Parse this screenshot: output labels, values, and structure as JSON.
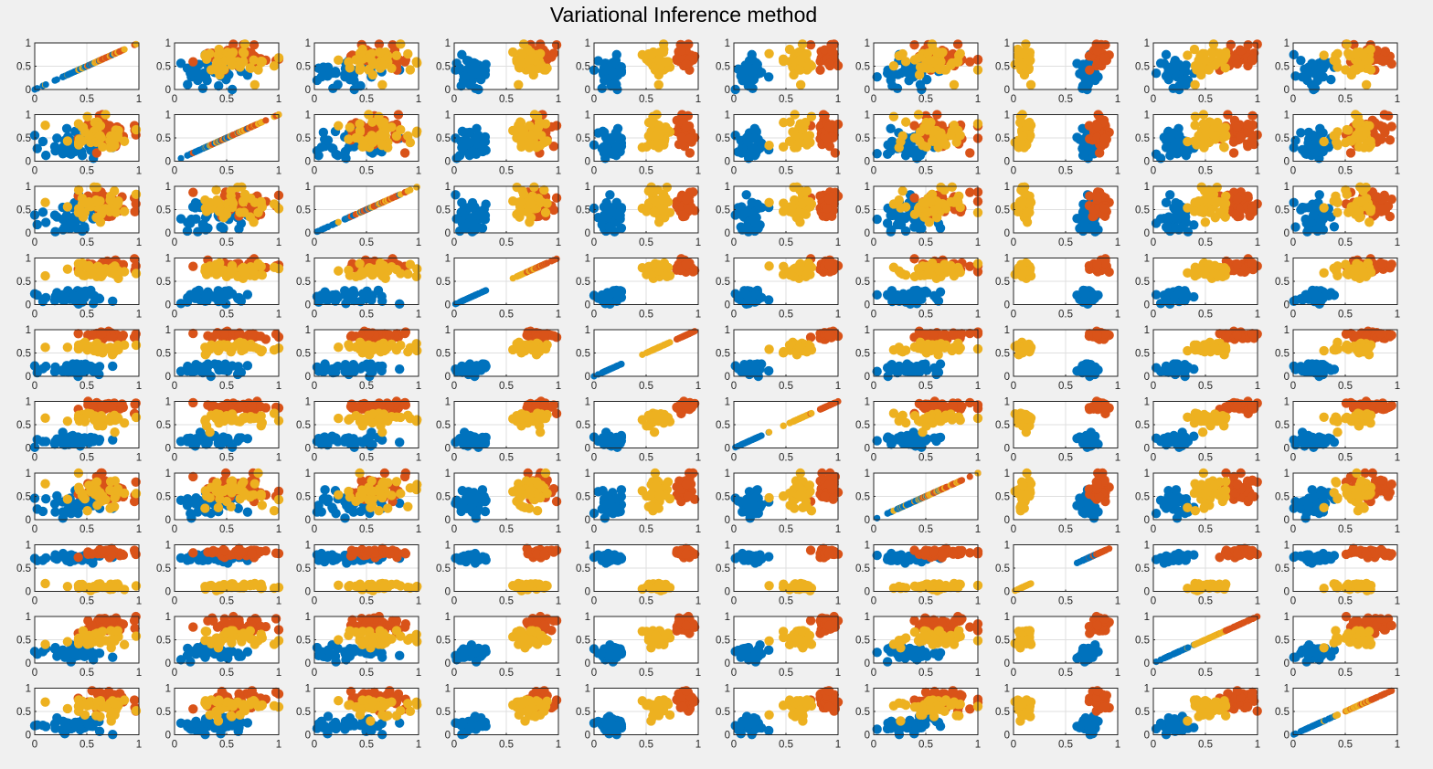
{
  "figure": {
    "title": "Variational Inference method"
  },
  "chart_data": {
    "type": "scatter",
    "layout": "scatterplot-matrix",
    "title": "Variational Inference method",
    "rows": 10,
    "cols": 10,
    "xlim": [
      0,
      1
    ],
    "ylim": [
      0,
      1
    ],
    "xticks": [
      0,
      0.5,
      1
    ],
    "yticks": [
      0,
      0.5,
      1
    ],
    "xtick_labels": [
      "0",
      "0.5",
      "1"
    ],
    "ytick_labels": [
      "0",
      "0.5",
      "1"
    ],
    "grid": true,
    "marker": "filled-circle",
    "points_per_cluster": 40,
    "clusters": [
      {
        "color": "#0072BD",
        "centers": [
          0.37,
          0.36,
          0.36,
          0.18,
          0.16,
          0.16,
          0.35,
          0.72,
          0.21,
          0.2
        ],
        "spreads": [
          0.24,
          0.24,
          0.24,
          0.12,
          0.1,
          0.1,
          0.22,
          0.06,
          0.12,
          0.12
        ]
      },
      {
        "color": "#D95319",
        "centers": [
          0.66,
          0.62,
          0.6,
          0.82,
          0.88,
          0.88,
          0.65,
          0.82,
          0.84,
          0.76
        ],
        "spreads": [
          0.24,
          0.24,
          0.24,
          0.1,
          0.06,
          0.06,
          0.24,
          0.06,
          0.1,
          0.14
        ]
      },
      {
        "color": "#EDB120",
        "centers": [
          0.58,
          0.6,
          0.58,
          0.72,
          0.62,
          0.62,
          0.6,
          0.1,
          0.55,
          0.58
        ],
        "spreads": [
          0.24,
          0.24,
          0.24,
          0.1,
          0.1,
          0.1,
          0.22,
          0.05,
          0.14,
          0.16
        ]
      }
    ]
  }
}
